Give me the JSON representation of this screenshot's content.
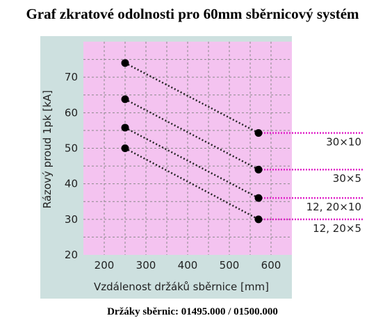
{
  "title": "Graf zkratové odolnosti pro 60mm sběrnicový systém",
  "footer": "Držáky sběrnic: 01495.000 / 01500.000",
  "colors": {
    "panel": "#cde0df",
    "plot": "#f4c3f0",
    "grid": "#8a8a8a",
    "series_line": "#222222",
    "marker": "#000000",
    "dashed_extension": "#e020c8"
  },
  "chart_data": {
    "type": "line",
    "title": "Graf zkratové odolnosti pro 60mm sběrnicový systém",
    "xlabel": "Vzdálenost držáků sběrnice [mm]",
    "ylabel": "Rázový proud 1pk [kA]",
    "xlim": [
      150,
      650
    ],
    "ylim": [
      20,
      80
    ],
    "xticks": [
      200,
      300,
      400,
      500,
      600
    ],
    "yticks": [
      20,
      30,
      40,
      50,
      60,
      70
    ],
    "grid": true,
    "series": [
      {
        "name": "30×10",
        "x": [
          250,
          570
        ],
        "y": [
          74,
          54.3
        ]
      },
      {
        "name": "30×5",
        "x": [
          250,
          570
        ],
        "y": [
          63.8,
          44
        ]
      },
      {
        "name": "12, 20×10",
        "x": [
          250,
          570
        ],
        "y": [
          55.8,
          36
        ]
      },
      {
        "name": "12, 20×5",
        "x": [
          250,
          570
        ],
        "y": [
          50,
          30
        ]
      }
    ]
  }
}
